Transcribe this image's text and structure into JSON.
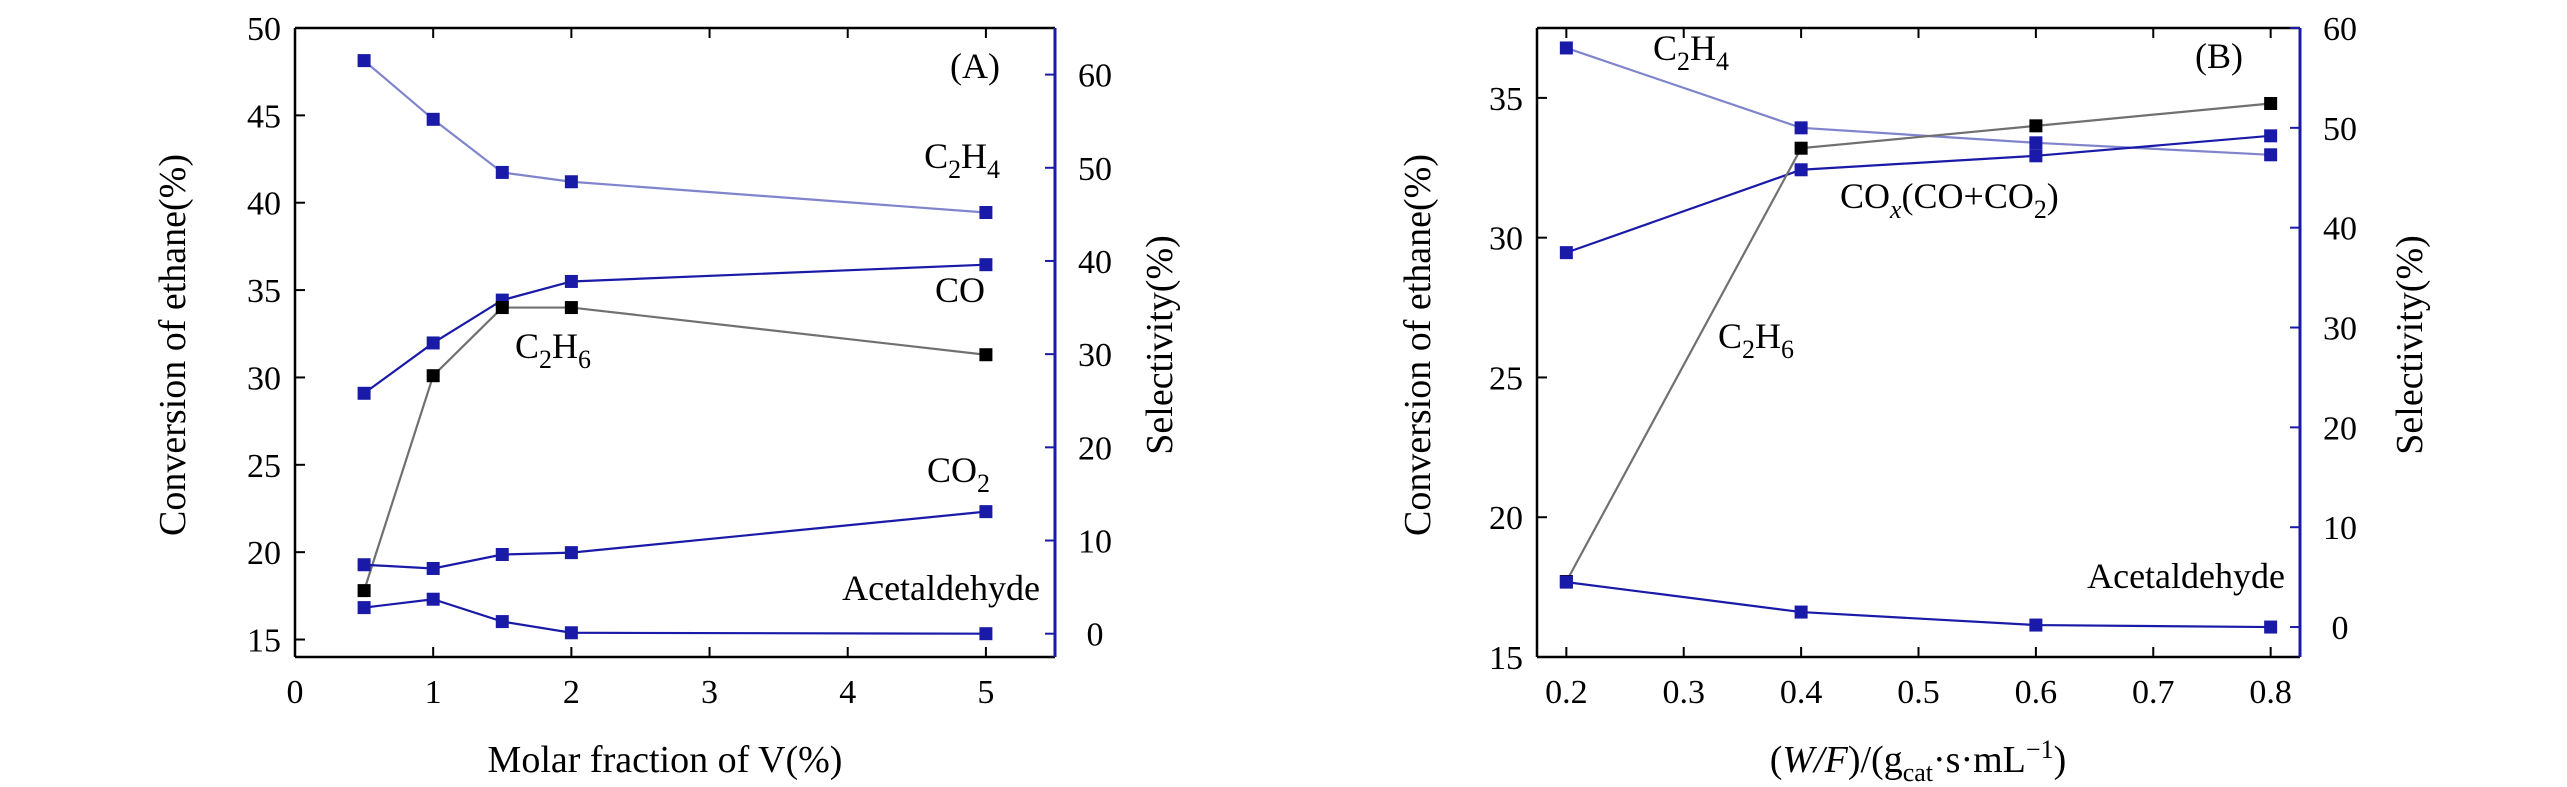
{
  "chart_data": [
    {
      "id": "A",
      "type": "line",
      "panel_label": "(A)",
      "xlabel": "Molar fraction of V(%)",
      "ylabel_left": "Conversion of ethane(%)",
      "ylabel_right": "Selectivity(%)",
      "xlim": [
        0,
        5.5
      ],
      "ylim_left": [
        14,
        50
      ],
      "ylim_right": [
        -2.5,
        65
      ],
      "xticks": [
        "0",
        "1",
        "2",
        "3",
        "4",
        "5"
      ],
      "yticks_left": [
        "15",
        "20",
        "25",
        "30",
        "35",
        "40",
        "45",
        "50"
      ],
      "yticks_right": [
        "0",
        "10",
        "20",
        "30",
        "40",
        "50",
        "60"
      ],
      "series": [
        {
          "name": "C2H4",
          "label_text": "C2H4",
          "axis": "right",
          "x": [
            0.5,
            1,
            1.5,
            2,
            5
          ],
          "values": [
            61.5,
            55.2,
            49.5,
            48.5,
            45.2
          ]
        },
        {
          "name": "CO",
          "label_text": "CO",
          "axis": "right",
          "x": [
            0.5,
            1,
            1.5,
            2,
            5
          ],
          "values": [
            25.8,
            31.2,
            35.8,
            37.8,
            39.6
          ]
        },
        {
          "name": "C2H6",
          "label_text": "C2H6",
          "axis": "left",
          "x": [
            0.5,
            1,
            1.5,
            2,
            5
          ],
          "values": [
            17.8,
            30.1,
            34.0,
            34.0,
            31.3
          ]
        },
        {
          "name": "CO2",
          "label_text": "CO2",
          "axis": "right",
          "x": [
            0.5,
            1,
            1.5,
            2,
            5
          ],
          "values": [
            7.4,
            7.0,
            8.5,
            8.7,
            13.1
          ]
        },
        {
          "name": "Acetaldehyde",
          "label_text": "Acetaldehyde",
          "axis": "right",
          "x": [
            0.5,
            1,
            1.5,
            2,
            5
          ],
          "values": [
            2.8,
            3.7,
            1.3,
            0.1,
            0.0
          ]
        }
      ]
    },
    {
      "id": "B",
      "type": "line",
      "panel_label": "(B)",
      "xlabel": "(W/F)/(gcat·s·mL−1)",
      "ylabel_left": "Conversion of ethane(%)",
      "ylabel_right": "Selectivity(%)",
      "xlim": [
        0.175,
        0.825
      ],
      "ylim_left": [
        15,
        37.5
      ],
      "ylim_right": [
        -3,
        60
      ],
      "xticks": [
        "0.2",
        "0.3",
        "0.4",
        "0.5",
        "0.6",
        "0.7",
        "0.8"
      ],
      "yticks_left": [
        "15",
        "20",
        "25",
        "30",
        "35"
      ],
      "yticks_right": [
        "0",
        "10",
        "20",
        "30",
        "40",
        "50",
        "60"
      ],
      "series": [
        {
          "name": "C2H4",
          "label_text": "C2H4",
          "axis": "right",
          "x": [
            0.2,
            0.4,
            0.6,
            0.8
          ],
          "values": [
            58.0,
            50.0,
            48.5,
            47.3
          ]
        },
        {
          "name": "COx(CO+CO2)",
          "label_text": "COx(CO+CO2)",
          "axis": "right",
          "x": [
            0.2,
            0.4,
            0.6,
            0.8
          ],
          "values": [
            37.5,
            45.8,
            47.2,
            49.2
          ]
        },
        {
          "name": "C2H6",
          "label_text": "C2H6",
          "axis": "left",
          "x": [
            0.2,
            0.4,
            0.6,
            0.8
          ],
          "values": [
            17.7,
            33.2,
            34.0,
            34.8
          ]
        },
        {
          "name": "Acetaldehyde",
          "label_text": "Acetaldehyde",
          "axis": "right",
          "x": [
            0.2,
            0.4,
            0.6,
            0.8
          ],
          "values": [
            4.5,
            1.5,
            0.2,
            0.0
          ]
        }
      ]
    }
  ]
}
